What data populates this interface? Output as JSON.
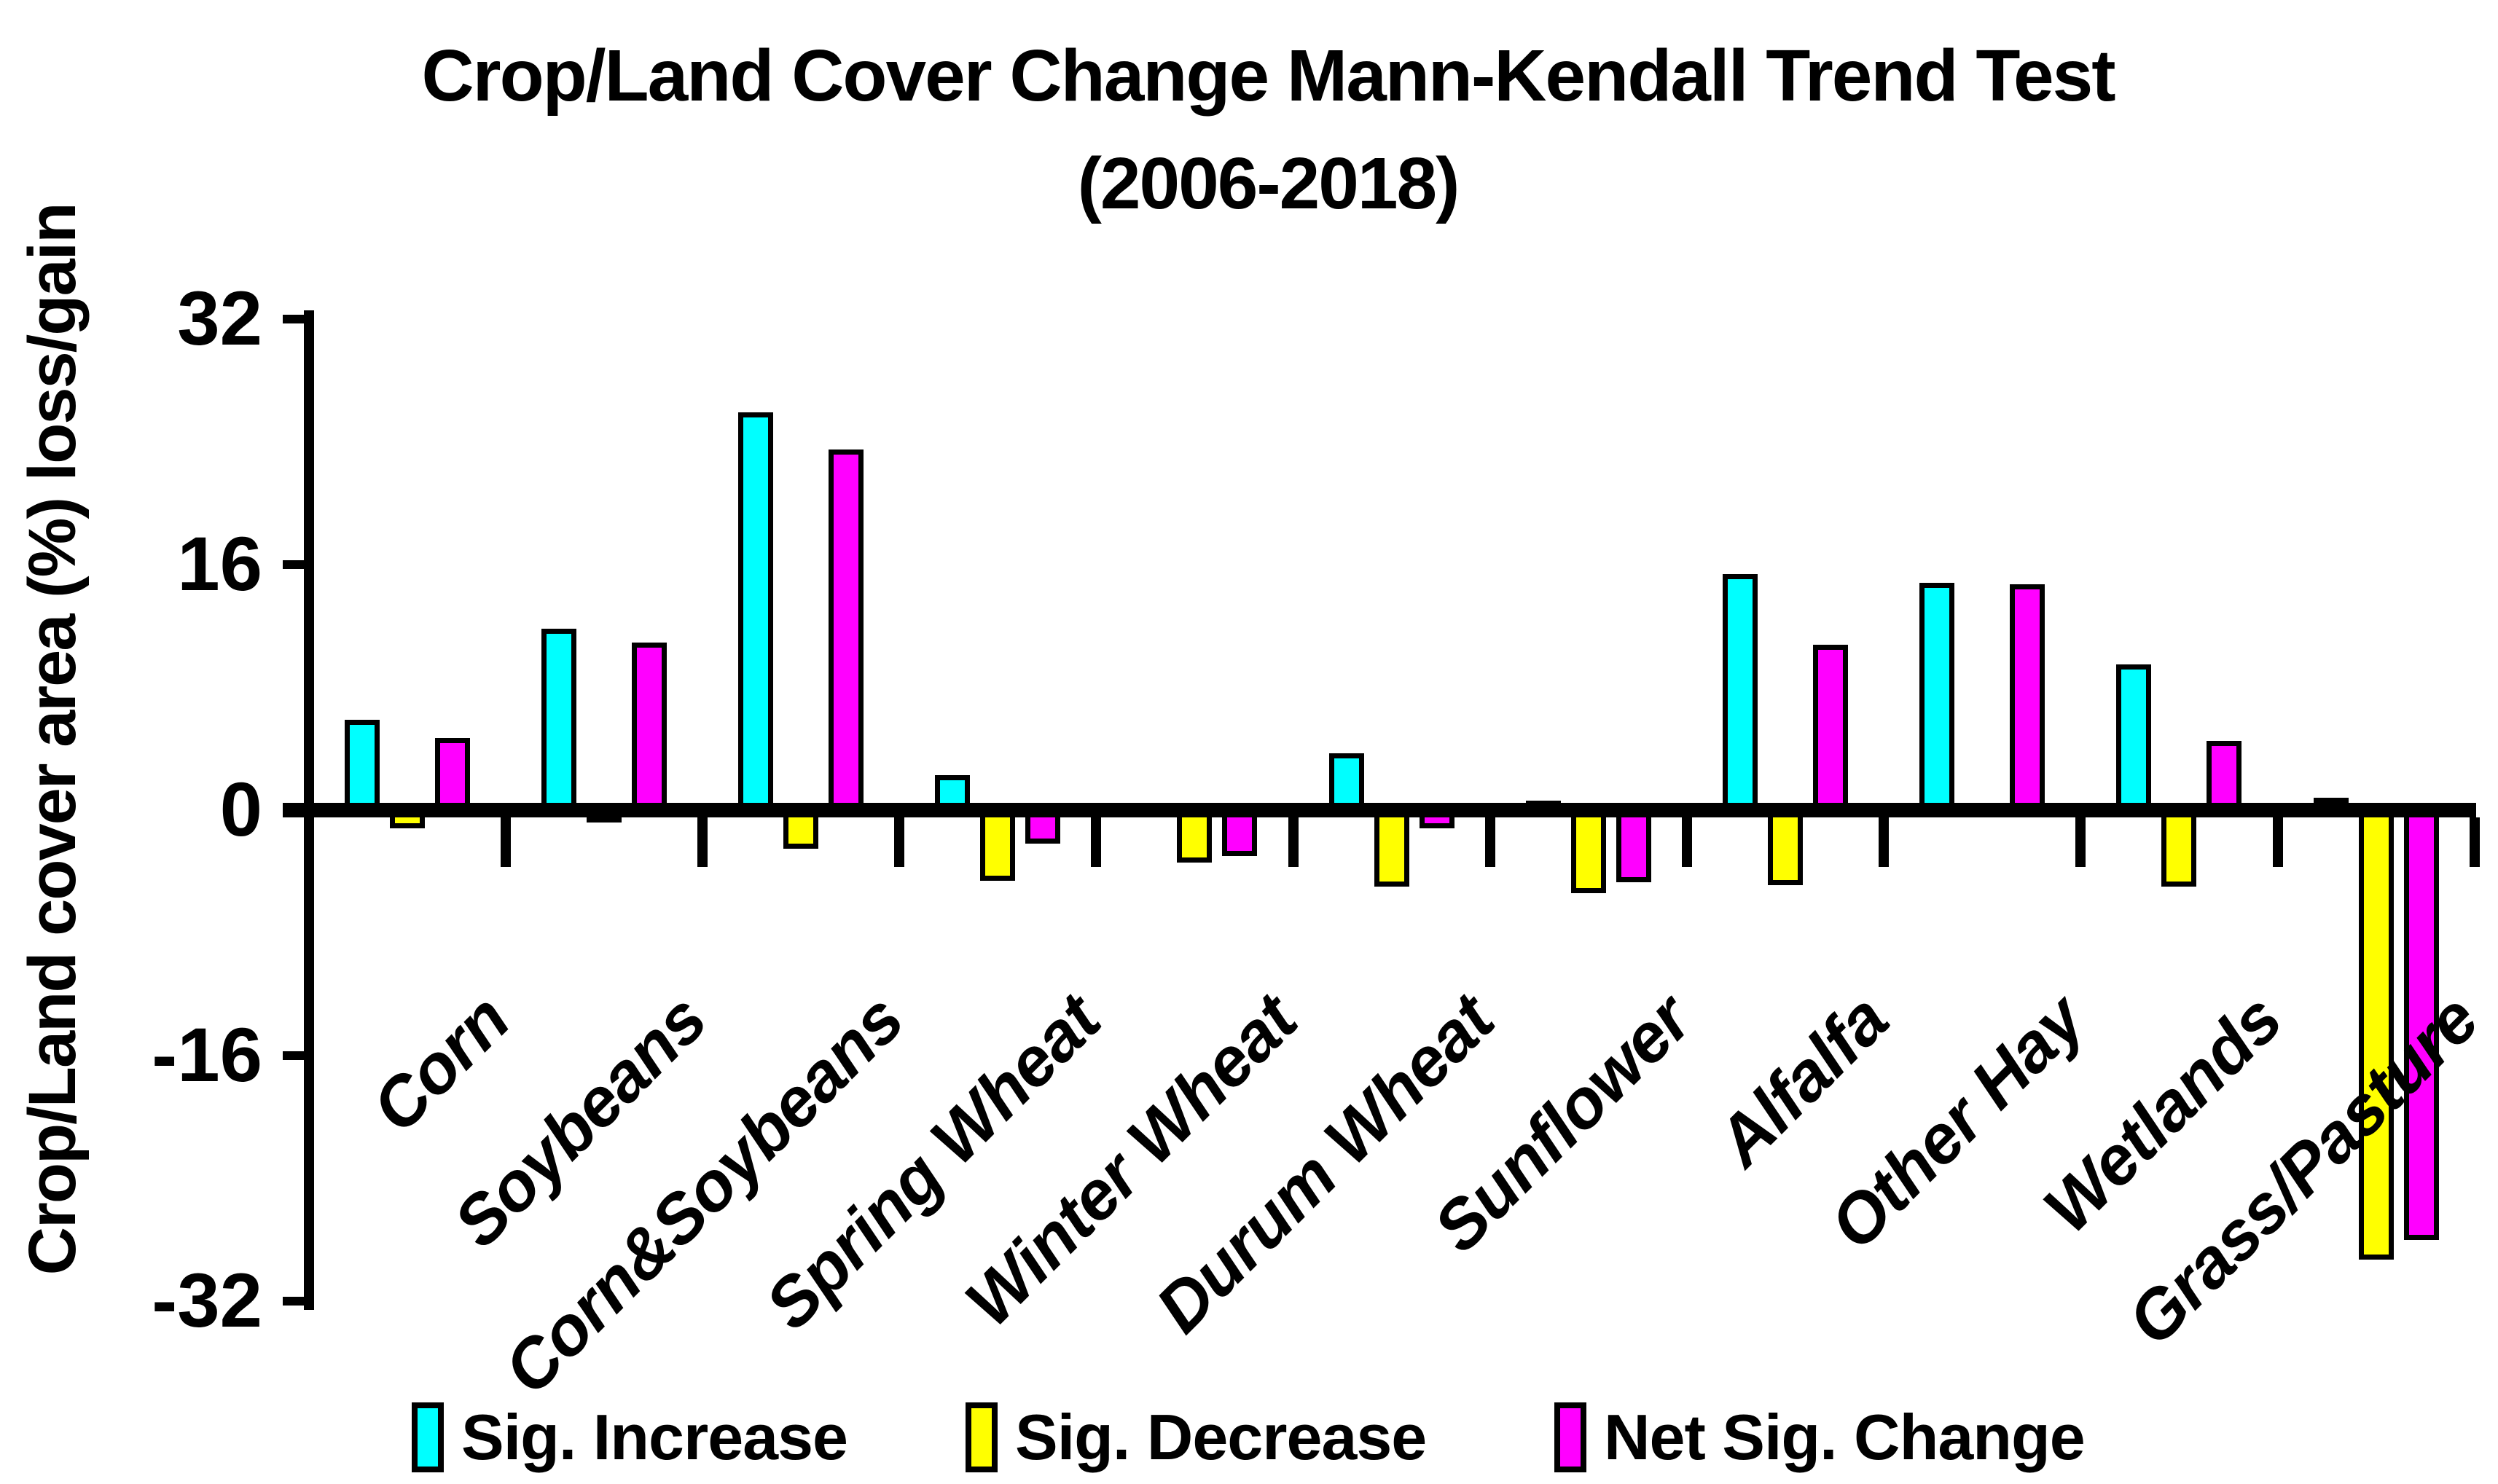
{
  "title": {
    "line1": "Crop/Land Cover Change Mann-Kendall Trend Test",
    "line2": "(2006-2018)"
  },
  "y_axis": {
    "label": "Crop/Land cover area (%) loss/gain",
    "tick_labels": [
      "32",
      "16",
      "0",
      "-16",
      "-32"
    ]
  },
  "legend": {
    "position": "bottom",
    "items": [
      {
        "label": "Sig. Increase",
        "color": "#00FFFF"
      },
      {
        "label": "Sig. Decrease",
        "color": "#FFFF00"
      },
      {
        "label": "Net Sig. Change",
        "color": "#FF00FF"
      }
    ]
  },
  "colors": {
    "sig_increase": "#00FFFF",
    "sig_decrease": "#FFFF00",
    "net_sig_change": "#FF00FF",
    "axis": "#000000",
    "background": "#FFFFFF"
  },
  "chart_data": {
    "type": "bar",
    "title": "Crop/Land Cover Change Mann-Kendall Trend Test (2006-2018)",
    "ylabel": "Crop/Land cover area (%) loss/gain",
    "xlabel": "",
    "ylim": [
      -32,
      32
    ],
    "yticks": [
      32,
      16,
      0,
      -16,
      -32
    ],
    "grid": false,
    "legend_position": "bottom",
    "categories": [
      "Corn",
      "Soybeans",
      "Corn&Soybeans",
      "Spring Wheat",
      "Winter Wheat",
      "Durum Wheat",
      "Sunflower",
      "Alfalfa",
      "Other Hay",
      "Wetlands",
      "Grass/Pasture"
    ],
    "series": [
      {
        "name": "Sig. Increase",
        "color": "#00FFFF",
        "values": [
          5.9,
          11.8,
          25.9,
          2.3,
          0.3,
          3.7,
          0.6,
          15.4,
          14.8,
          9.5,
          0.8
        ]
      },
      {
        "name": "Sig. Decrease",
        "color": "#FFFF00",
        "values": [
          -1.2,
          -0.8,
          -2.5,
          -4.6,
          -3.4,
          -5.0,
          -5.4,
          -4.9,
          0,
          -5.0,
          -29.3
        ]
      },
      {
        "name": "Net Sig. Change",
        "color": "#FF00FF",
        "values": [
          4.7,
          10.9,
          23.5,
          -2.2,
          -3.0,
          -1.2,
          -4.7,
          10.8,
          14.7,
          4.5,
          -28.0
        ]
      }
    ]
  }
}
